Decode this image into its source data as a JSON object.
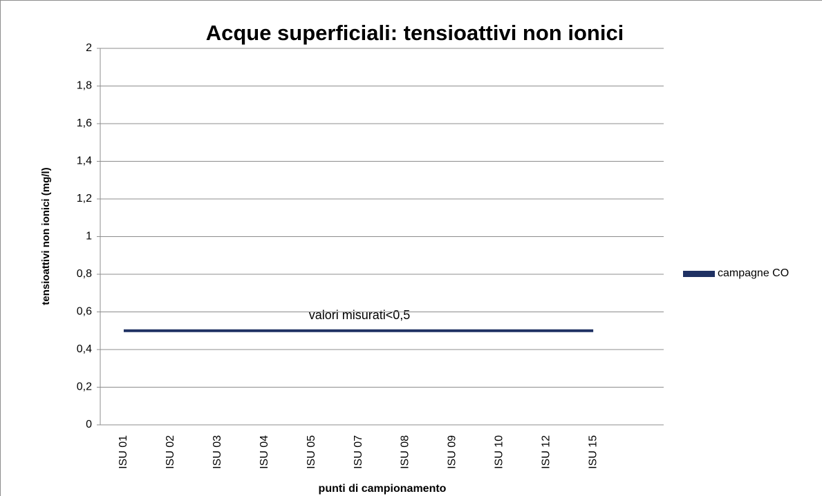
{
  "chart_data": {
    "type": "line",
    "title": "Acque superficiali: tensioattivi non ionici",
    "x_label": "punti di campionamento",
    "y_label": "tensioattivi non ionici (mg/l)",
    "annotation": "valori misurati<0,5",
    "categories": [
      "ISU 01",
      "ISU 02",
      "ISU 03",
      "ISU 04",
      "ISU 05",
      "ISU 07",
      "ISU 08",
      "ISU 09",
      "ISU 10",
      "ISU 12",
      "ISU 15",
      null
    ],
    "series": [
      {
        "name": "campagne CO",
        "color": "#1f3163",
        "values": [
          0.5,
          0.5,
          0.5,
          0.5,
          0.5,
          0.5,
          0.5,
          0.5,
          0.5,
          0.5,
          0.5,
          null
        ]
      }
    ],
    "ylim": [
      0,
      2
    ],
    "yticks": [
      0,
      {
        "value": 0.2,
        "label": "0,2"
      },
      {
        "value": 0.4,
        "label": "0,4"
      },
      {
        "value": 0.6,
        "label": "0,6"
      },
      {
        "value": 0.8,
        "label": "0,8"
      },
      1,
      {
        "value": 1.2,
        "label": "1,2"
      },
      {
        "value": 1.4,
        "label": "1,4"
      },
      {
        "value": 1.6,
        "label": "1,6"
      },
      {
        "value": 1.8,
        "label": "1,8"
      },
      2
    ],
    "grid": true,
    "legend": "right"
  }
}
